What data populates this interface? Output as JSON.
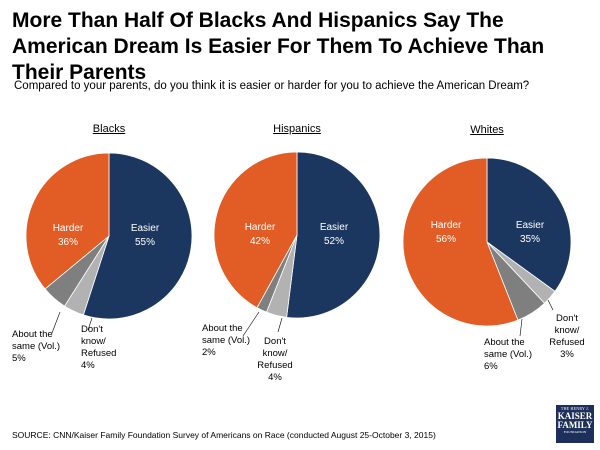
{
  "header": {
    "title": "More Than Half Of Blacks And Hispanics Say The American Dream Is Easier For Them To Achieve Than Their Parents",
    "subtitle": "Compared to your parents, do you think it is easier or harder for you to achieve the American Dream?"
  },
  "colors": {
    "easier": "#1b375f",
    "harder": "#e25d26",
    "same": "#7f7f7f",
    "dontknow": "#b2b2b2"
  },
  "chart_data": [
    {
      "type": "pie",
      "title": "Blacks",
      "slices": [
        {
          "key": "easier",
          "label": "Easier",
          "value": 55
        },
        {
          "key": "dontknow",
          "label": "Don't know/ Refused",
          "value": 4
        },
        {
          "key": "same",
          "label": "About the same (Vol.)",
          "value": 5
        },
        {
          "key": "harder",
          "label": "Harder",
          "value": 36
        }
      ]
    },
    {
      "type": "pie",
      "title": "Hispanics",
      "slices": [
        {
          "key": "easier",
          "label": "Easier",
          "value": 52
        },
        {
          "key": "dontknow",
          "label": "Don't know/ Refused",
          "value": 4
        },
        {
          "key": "same",
          "label": "About the same (Vol.)",
          "value": 2
        },
        {
          "key": "harder",
          "label": "Harder",
          "value": 42
        }
      ]
    },
    {
      "type": "pie",
      "title": "Whites",
      "slices": [
        {
          "key": "easier",
          "label": "Easier",
          "value": 35
        },
        {
          "key": "dontknow",
          "label": "Don't know/ Refused",
          "value": 3
        },
        {
          "key": "same",
          "label": "About the same (Vol.)",
          "value": 6
        },
        {
          "key": "harder",
          "label": "Harder",
          "value": 56
        }
      ]
    }
  ],
  "footer": {
    "source": "SOURCE: CNN/Kaiser Family Foundation Survey of Americans on Race (conducted August 25-October 3, 2015)",
    "logo": {
      "line1": "THE HENRY J.",
      "line2": "KAISER",
      "line3": "FAMILY",
      "line4": "FOUNDATION"
    }
  }
}
